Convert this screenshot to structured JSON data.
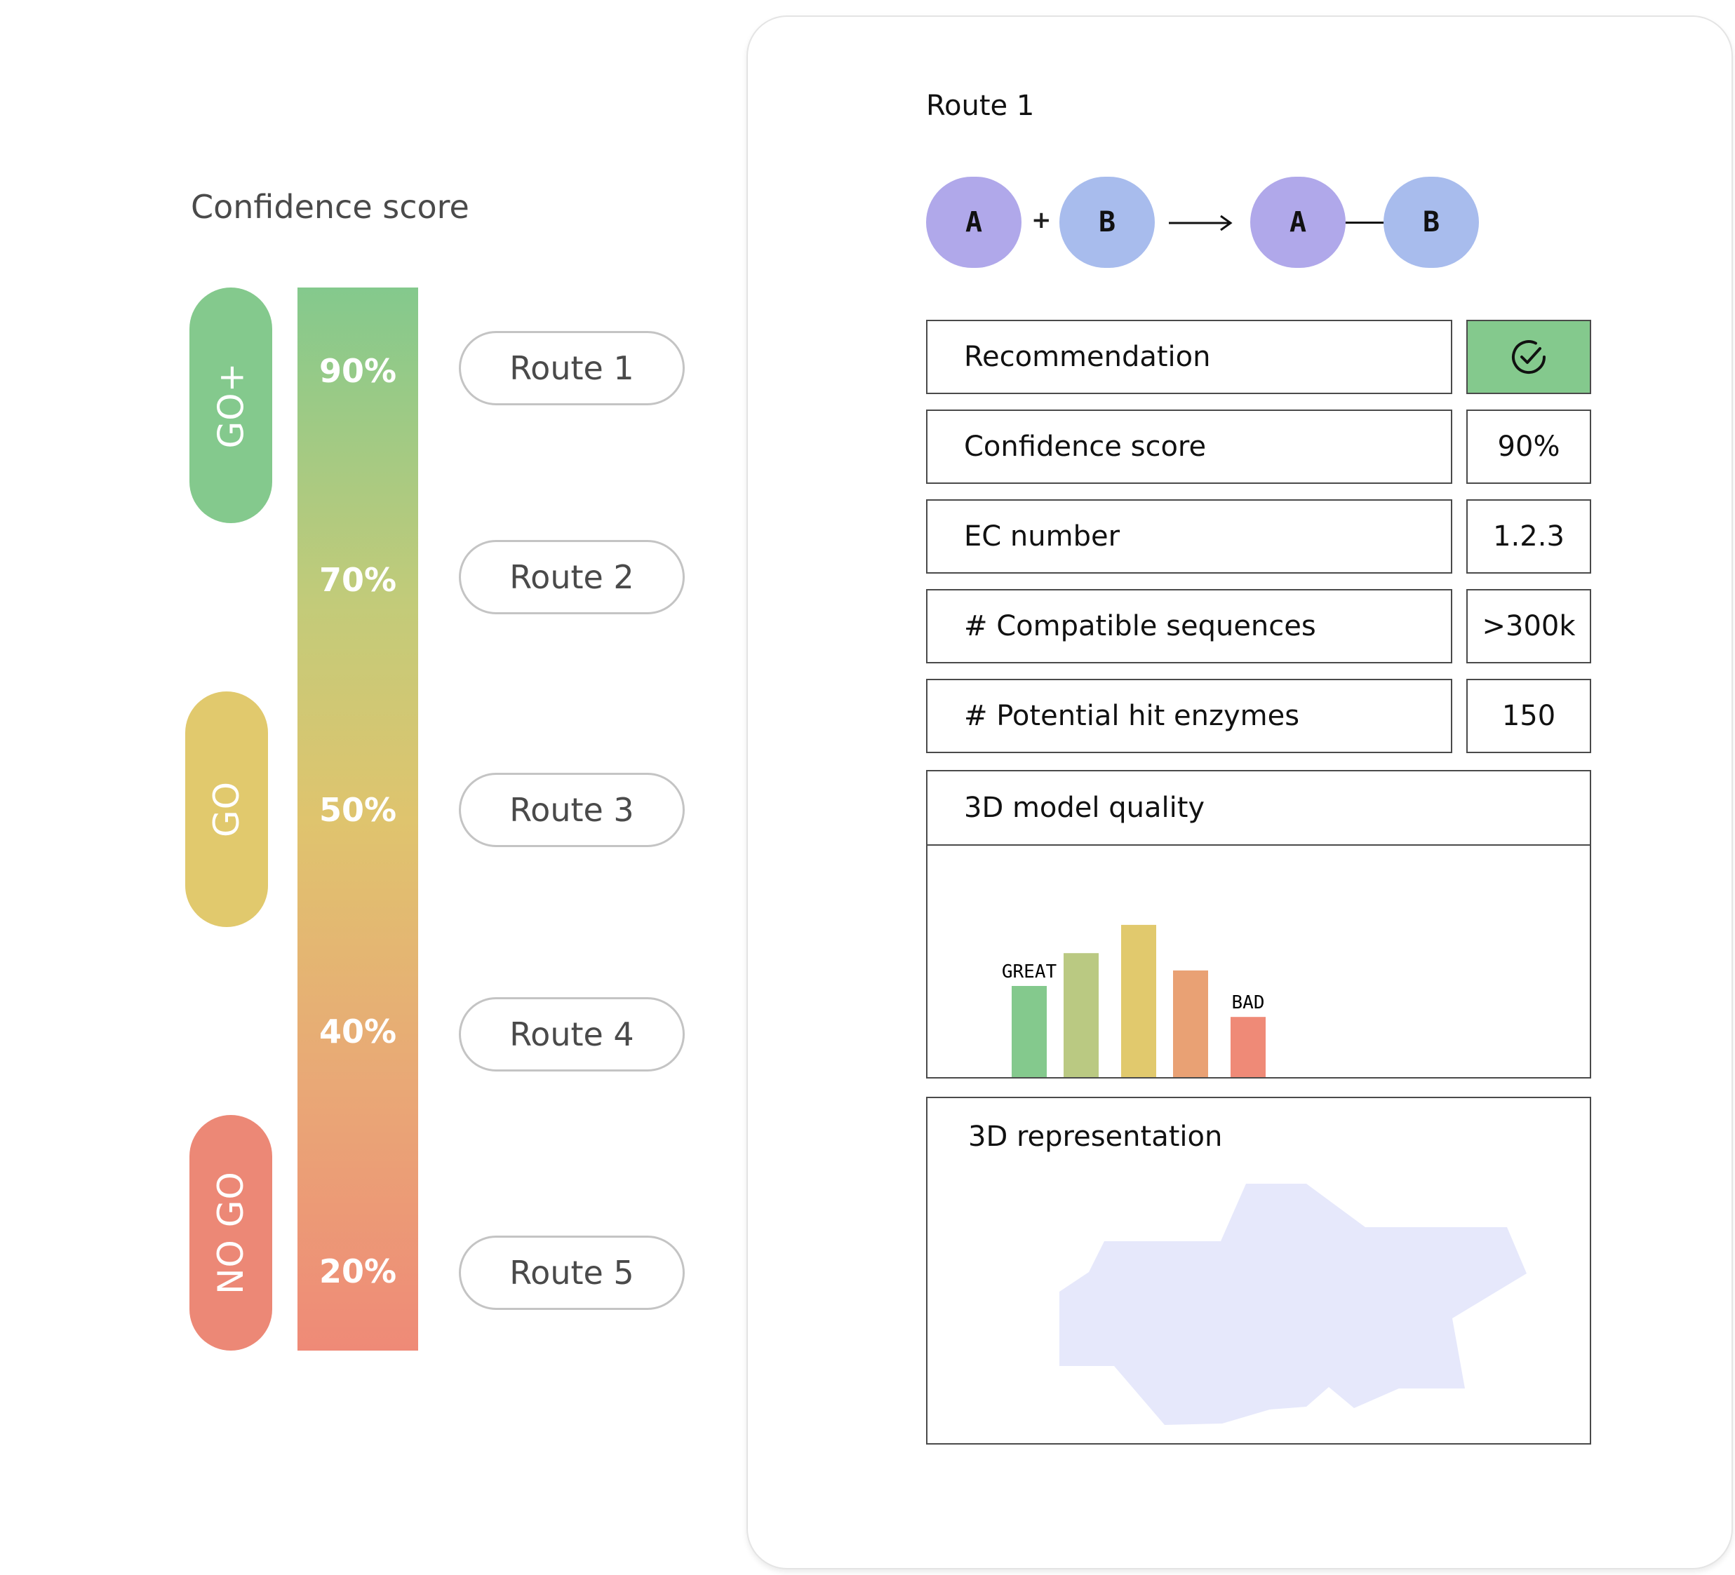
{
  "left": {
    "title": "Confidence score",
    "decisions": [
      {
        "label": "GO+",
        "color": "#84c98d"
      },
      {
        "label": "GO",
        "color": "#e1c96d"
      },
      {
        "label": "NO GO",
        "color": "#ec8876"
      }
    ],
    "percentages": [
      "90%",
      "70%",
      "50%",
      "40%",
      "20%"
    ],
    "routes": [
      "Route 1",
      "Route 2",
      "Route 3",
      "Route 4",
      "Route 5"
    ]
  },
  "detail": {
    "route_title": "Route 1",
    "reaction": {
      "left": [
        "A",
        "B"
      ],
      "plus": "+",
      "arrow": "→",
      "right": [
        "A",
        "B"
      ]
    },
    "rows": [
      {
        "label": "Recommendation",
        "icon": "check-circle-icon",
        "color": "#84c98d"
      },
      {
        "label": "Confidence score",
        "value": "90%"
      },
      {
        "label": "EC number",
        "value": "1.2.3"
      },
      {
        "label": "# Compatible sequences",
        "value": ">300k"
      },
      {
        "label": "# Potential hit enzymes",
        "value": "150"
      }
    ],
    "model_quality": {
      "title": "3D model quality",
      "best_label": "GREAT",
      "worst_label": "BAD"
    },
    "representation_title": "3D representation"
  },
  "chart_data": {
    "type": "bar",
    "title": "3D model quality",
    "categories": [
      "",
      "",
      "",
      "",
      ""
    ],
    "values": [
      100,
      136,
      167,
      117,
      66
    ],
    "colors": [
      "#84c98d",
      "#bac982",
      "#e1c96d",
      "#e9a174",
      "#ef8a77"
    ],
    "annotations": [
      {
        "index": 0,
        "text": "GREAT"
      },
      {
        "index": 4,
        "text": "BAD"
      }
    ],
    "ylim": [
      0,
      200
    ],
    "grid": false
  }
}
